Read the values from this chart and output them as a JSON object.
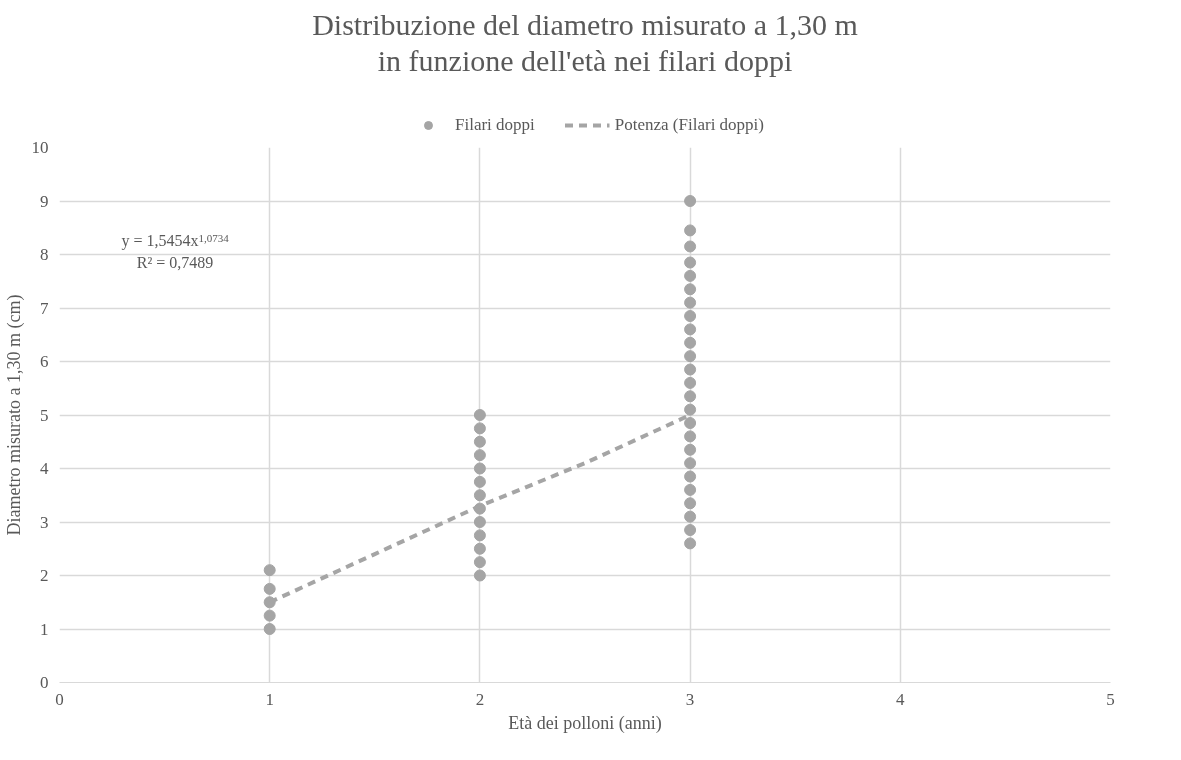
{
  "chart_data": {
    "type": "scatter",
    "title": "Distribuzione del diametro misurato a 1,30 m\nin funzione dell'età nei filari doppi",
    "xlabel": "Età dei polloni (anni)",
    "ylabel": "Diametro misurato a 1,30 m (cm)",
    "xlim": [
      0,
      5
    ],
    "xticks": [
      0,
      1,
      2,
      3,
      4,
      5
    ],
    "ylim": [
      0,
      10
    ],
    "yticks": [
      0,
      1,
      2,
      3,
      4,
      5,
      6,
      7,
      8,
      9,
      10
    ],
    "grid": true,
    "legend": "top",
    "marker": "circle",
    "annotations": [
      "y = 1,5454x$^{1,0734}$",
      "R² = 0,7489"
    ],
    "series": [
      {
        "name": "Filari doppi",
        "color": "#a5a5a5",
        "x": [
          1,
          1,
          1,
          1,
          1,
          2,
          2,
          2,
          2,
          2,
          2,
          2,
          2,
          2,
          2,
          2,
          2,
          2,
          3,
          3,
          3,
          3,
          3,
          3,
          3,
          3,
          3,
          3,
          3,
          3,
          3,
          3,
          3,
          3,
          3,
          3,
          3,
          3,
          3,
          3,
          3,
          3,
          3
        ],
        "values": [
          1.0,
          1.25,
          1.5,
          1.75,
          2.1,
          2.0,
          2.25,
          2.5,
          2.75,
          3.0,
          3.25,
          3.5,
          3.75,
          4.0,
          4.25,
          4.5,
          4.75,
          5.0,
          2.6,
          2.85,
          3.1,
          3.35,
          3.6,
          3.85,
          4.1,
          4.35,
          4.6,
          4.85,
          5.1,
          5.35,
          5.6,
          5.85,
          6.1,
          6.35,
          6.6,
          6.85,
          7.1,
          7.35,
          7.6,
          7.85,
          8.15,
          8.45,
          9.0
        ]
      },
      {
        "name": "Potenza (Filari doppi)",
        "type": "line",
        "line_style": "dashed",
        "marker": "none",
        "color": "#a5a5a5",
        "x": [
          1,
          1.5,
          2,
          2.5,
          3
        ],
        "values": [
          1.5,
          2.4,
          3.3,
          4.1,
          5.0
        ]
      }
    ]
  }
}
